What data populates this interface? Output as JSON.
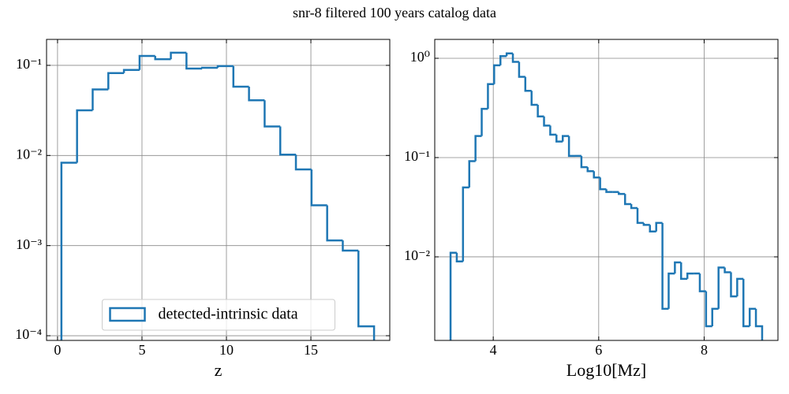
{
  "title": "snr-8 filtered 100 years catalog data",
  "chart_data": [
    {
      "type": "histogram",
      "xlabel": "z",
      "log_scale": "y",
      "grid": true,
      "legend": "lower center",
      "xlim": [
        -0.65,
        19.67
      ],
      "ylim": [
        8.87e-05,
        0.194
      ],
      "xticks": [
        0,
        5,
        10,
        15
      ],
      "yticks": [
        {
          "value": 0.1,
          "label": "10⁻¹"
        },
        {
          "value": 0.01,
          "label": "10⁻²"
        },
        {
          "value": 0.001,
          "label": "10⁻³"
        },
        {
          "value": 0.0001,
          "label": "10⁻⁴"
        }
      ],
      "bins": [
        0.23,
        1.156,
        2.081,
        3.007,
        3.932,
        4.858,
        5.783,
        6.709,
        7.634,
        8.56,
        9.485,
        10.411,
        11.336,
        12.262,
        13.187,
        14.113,
        15.038,
        15.964,
        16.889,
        17.815,
        18.74
      ],
      "series": [
        {
          "name": "detected-intrinsic data",
          "color": "#1f77b4",
          "values": [
            0.0083,
            0.0317,
            0.054,
            0.082,
            0.089,
            0.127,
            0.117,
            0.138,
            0.092,
            0.094,
            0.098,
            0.058,
            0.041,
            0.021,
            0.0102,
            0.007,
            0.0028,
            0.00114,
            0.00088,
            0.000127
          ]
        }
      ]
    },
    {
      "type": "histogram",
      "xlabel": "Log10[Mz]",
      "log_scale": "y",
      "grid": true,
      "xlim": [
        2.89,
        9.4
      ],
      "ylim": [
        0.00144,
        1.55
      ],
      "xticks": [
        4,
        6,
        8
      ],
      "yticks": [
        {
          "value": 1,
          "label": "10⁰"
        },
        {
          "value": 0.1,
          "label": "10⁻¹"
        },
        {
          "value": 0.01,
          "label": "10⁻²"
        }
      ],
      "bins": [
        3.19,
        3.308,
        3.426,
        3.545,
        3.663,
        3.781,
        3.899,
        4.017,
        4.136,
        4.254,
        4.372,
        4.49,
        4.608,
        4.727,
        4.845,
        4.963,
        5.081,
        5.199,
        5.318,
        5.436,
        5.554,
        5.672,
        5.79,
        5.909,
        6.027,
        6.145,
        6.263,
        6.381,
        6.5,
        6.618,
        6.736,
        6.854,
        6.972,
        7.091,
        7.209,
        7.327,
        7.445,
        7.563,
        7.682,
        7.8,
        7.918,
        8.036,
        8.154,
        8.273,
        8.391,
        8.509,
        8.627,
        8.745,
        8.864,
        8.982,
        9.1
      ],
      "color": "#1f77b4",
      "values": [
        0.011,
        0.009,
        0.05,
        0.092,
        0.165,
        0.31,
        0.55,
        0.85,
        1.05,
        1.12,
        0.92,
        0.65,
        0.47,
        0.34,
        0.26,
        0.21,
        0.17,
        0.145,
        0.165,
        0.104,
        0.104,
        0.08,
        0.073,
        0.063,
        0.048,
        0.045,
        0.045,
        0.043,
        0.034,
        0.031,
        0.022,
        0.021,
        0.018,
        0.022,
        0.003,
        0.0068,
        0.0088,
        0.006,
        0.0068,
        0.0068,
        0.0045,
        0.002,
        0.003,
        0.0078,
        0.007,
        0.004,
        0.006,
        0.002,
        0.003,
        0.002
      ]
    }
  ]
}
